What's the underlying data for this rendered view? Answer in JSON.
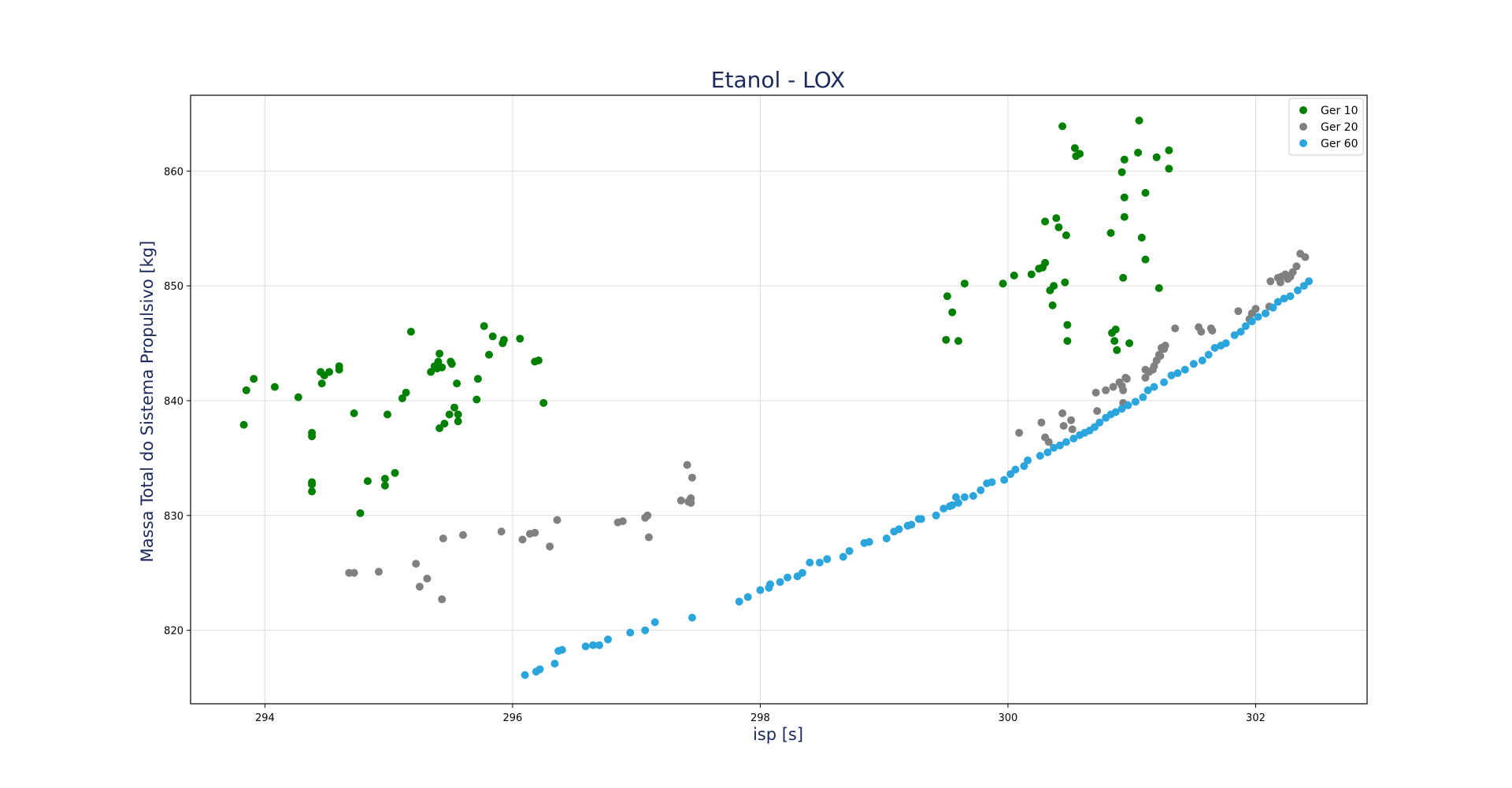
{
  "chart_data": {
    "type": "scatter",
    "title": "Etanol - LOX",
    "xlabel": "isp [s]",
    "ylabel": "Massa Total do Sistema Propulsivo [kg]",
    "xlim": [
      293.4,
      302.9
    ],
    "ylim": [
      813.6,
      866.6
    ],
    "xticks": [
      294,
      296,
      298,
      300,
      302
    ],
    "yticks": [
      820,
      830,
      840,
      850,
      860
    ],
    "grid": true,
    "legend": "top-right",
    "series": [
      {
        "name": "Ger 10",
        "color": "#008000",
        "points": [
          [
            293.83,
            837.9
          ],
          [
            293.85,
            840.9
          ],
          [
            293.91,
            841.9
          ],
          [
            294.08,
            841.2
          ],
          [
            294.27,
            840.3
          ],
          [
            294.38,
            837.2
          ],
          [
            294.38,
            836.9
          ],
          [
            294.38,
            832.9
          ],
          [
            294.38,
            832.7
          ],
          [
            294.38,
            832.1
          ],
          [
            294.45,
            842.5
          ],
          [
            294.46,
            841.5
          ],
          [
            294.48,
            842.2
          ],
          [
            294.52,
            842.5
          ],
          [
            294.6,
            843.0
          ],
          [
            294.6,
            842.7
          ],
          [
            294.72,
            838.9
          ],
          [
            294.77,
            830.2
          ],
          [
            294.83,
            833.0
          ],
          [
            294.97,
            833.2
          ],
          [
            294.97,
            832.6
          ],
          [
            294.99,
            838.8
          ],
          [
            295.05,
            833.7
          ],
          [
            295.11,
            840.2
          ],
          [
            295.14,
            840.7
          ],
          [
            295.18,
            846.0
          ],
          [
            295.34,
            842.5
          ],
          [
            295.37,
            843.0
          ],
          [
            295.39,
            842.8
          ],
          [
            295.4,
            843.4
          ],
          [
            295.41,
            844.1
          ],
          [
            295.41,
            837.6
          ],
          [
            295.43,
            842.9
          ],
          [
            295.45,
            838.0
          ],
          [
            295.49,
            838.8
          ],
          [
            295.5,
            843.4
          ],
          [
            295.51,
            843.2
          ],
          [
            295.53,
            839.4
          ],
          [
            295.55,
            841.5
          ],
          [
            295.56,
            838.8
          ],
          [
            295.56,
            838.2
          ],
          [
            295.71,
            840.1
          ],
          [
            295.72,
            841.9
          ],
          [
            295.77,
            846.5
          ],
          [
            295.81,
            844.0
          ],
          [
            295.84,
            845.6
          ],
          [
            295.92,
            845.0
          ],
          [
            295.93,
            845.3
          ],
          [
            296.06,
            845.4
          ],
          [
            296.18,
            843.4
          ],
          [
            296.21,
            843.5
          ],
          [
            296.25,
            839.8
          ],
          [
            299.5,
            845.3
          ],
          [
            299.51,
            849.1
          ],
          [
            299.55,
            847.7
          ],
          [
            299.6,
            845.2
          ],
          [
            299.65,
            850.2
          ],
          [
            299.96,
            850.2
          ],
          [
            300.05,
            850.9
          ],
          [
            300.19,
            851.0
          ],
          [
            300.25,
            851.5
          ],
          [
            300.28,
            851.6
          ],
          [
            300.3,
            852.0
          ],
          [
            300.3,
            855.6
          ],
          [
            300.34,
            849.6
          ],
          [
            300.36,
            848.3
          ],
          [
            300.37,
            850.0
          ],
          [
            300.39,
            855.9
          ],
          [
            300.41,
            855.1
          ],
          [
            300.44,
            863.9
          ],
          [
            300.46,
            850.3
          ],
          [
            300.47,
            854.4
          ],
          [
            300.48,
            846.6
          ],
          [
            300.48,
            845.2
          ],
          [
            300.54,
            862.0
          ],
          [
            300.55,
            861.3
          ],
          [
            300.58,
            861.5
          ],
          [
            300.83,
            854.6
          ],
          [
            300.84,
            845.9
          ],
          [
            300.86,
            845.2
          ],
          [
            300.87,
            846.2
          ],
          [
            300.88,
            844.4
          ],
          [
            300.92,
            859.9
          ],
          [
            300.93,
            850.7
          ],
          [
            300.94,
            856.0
          ],
          [
            300.94,
            857.7
          ],
          [
            300.94,
            861.0
          ],
          [
            300.98,
            845.0
          ],
          [
            301.05,
            861.6
          ],
          [
            301.06,
            864.4
          ],
          [
            301.08,
            854.2
          ],
          [
            301.11,
            858.1
          ],
          [
            301.11,
            852.3
          ],
          [
            301.2,
            861.2
          ],
          [
            301.22,
            849.8
          ],
          [
            301.3,
            861.8
          ],
          [
            301.3,
            860.2
          ]
        ]
      },
      {
        "name": "Ger 20",
        "color": "#808080",
        "points": [
          [
            294.68,
            825.0
          ],
          [
            294.72,
            825.0
          ],
          [
            294.92,
            825.1
          ],
          [
            295.22,
            825.8
          ],
          [
            295.25,
            823.8
          ],
          [
            295.31,
            824.5
          ],
          [
            295.43,
            822.7
          ],
          [
            295.44,
            828.0
          ],
          [
            295.6,
            828.3
          ],
          [
            295.91,
            828.6
          ],
          [
            296.08,
            827.9
          ],
          [
            296.14,
            828.4
          ],
          [
            296.18,
            828.5
          ],
          [
            296.3,
            827.3
          ],
          [
            296.36,
            829.6
          ],
          [
            296.85,
            829.4
          ],
          [
            296.89,
            829.5
          ],
          [
            297.07,
            829.8
          ],
          [
            297.09,
            830.0
          ],
          [
            297.1,
            828.1
          ],
          [
            297.36,
            831.3
          ],
          [
            297.41,
            834.4
          ],
          [
            297.42,
            831.2
          ],
          [
            297.44,
            831.5
          ],
          [
            297.44,
            831.1
          ],
          [
            297.45,
            833.3
          ],
          [
            300.09,
            837.2
          ],
          [
            300.27,
            838.1
          ],
          [
            300.3,
            836.8
          ],
          [
            300.33,
            836.4
          ],
          [
            300.44,
            838.9
          ],
          [
            300.45,
            837.8
          ],
          [
            300.51,
            838.3
          ],
          [
            300.52,
            837.5
          ],
          [
            300.71,
            840.7
          ],
          [
            300.72,
            839.1
          ],
          [
            300.79,
            840.9
          ],
          [
            300.85,
            841.2
          ],
          [
            300.9,
            841.6
          ],
          [
            300.92,
            841.3
          ],
          [
            300.93,
            840.9
          ],
          [
            300.93,
            839.8
          ],
          [
            300.95,
            842.0
          ],
          [
            300.96,
            841.9
          ],
          [
            301.11,
            842.7
          ],
          [
            301.11,
            842.0
          ],
          [
            301.14,
            842.5
          ],
          [
            301.17,
            842.7
          ],
          [
            301.18,
            843.0
          ],
          [
            301.2,
            843.5
          ],
          [
            301.22,
            844.0
          ],
          [
            301.23,
            843.9
          ],
          [
            301.24,
            844.6
          ],
          [
            301.26,
            844.5
          ],
          [
            301.27,
            844.8
          ],
          [
            301.35,
            846.3
          ],
          [
            301.54,
            846.4
          ],
          [
            301.56,
            846.0
          ],
          [
            301.64,
            846.3
          ],
          [
            301.65,
            846.1
          ],
          [
            301.86,
            847.8
          ],
          [
            301.95,
            847.1
          ],
          [
            301.97,
            847.6
          ],
          [
            302.0,
            848.0
          ],
          [
            302.08,
            847.6
          ],
          [
            302.11,
            848.2
          ],
          [
            302.12,
            850.4
          ],
          [
            302.18,
            850.7
          ],
          [
            302.2,
            850.3
          ],
          [
            302.21,
            850.8
          ],
          [
            302.24,
            851.0
          ],
          [
            302.26,
            850.6
          ],
          [
            302.28,
            850.8
          ],
          [
            302.3,
            851.2
          ],
          [
            302.33,
            851.7
          ],
          [
            302.36,
            852.8
          ],
          [
            302.4,
            852.5
          ]
        ]
      },
      {
        "name": "Ger 60",
        "color": "#2ca5dc",
        "points": [
          [
            296.1,
            816.1
          ],
          [
            296.19,
            816.4
          ],
          [
            296.22,
            816.6
          ],
          [
            296.34,
            817.1
          ],
          [
            296.37,
            818.2
          ],
          [
            296.4,
            818.3
          ],
          [
            296.59,
            818.6
          ],
          [
            296.65,
            818.7
          ],
          [
            296.7,
            818.7
          ],
          [
            296.77,
            819.2
          ],
          [
            296.95,
            819.8
          ],
          [
            297.07,
            820.0
          ],
          [
            297.15,
            820.7
          ],
          [
            297.45,
            821.1
          ],
          [
            297.83,
            822.5
          ],
          [
            297.9,
            822.9
          ],
          [
            298.0,
            823.5
          ],
          [
            298.07,
            823.7
          ],
          [
            298.08,
            824.0
          ],
          [
            298.16,
            824.2
          ],
          [
            298.22,
            824.6
          ],
          [
            298.3,
            824.7
          ],
          [
            298.34,
            825.0
          ],
          [
            298.4,
            825.9
          ],
          [
            298.48,
            825.9
          ],
          [
            298.54,
            826.2
          ],
          [
            298.67,
            826.4
          ],
          [
            298.72,
            826.9
          ],
          [
            298.84,
            827.6
          ],
          [
            298.88,
            827.7
          ],
          [
            299.02,
            828.0
          ],
          [
            299.08,
            828.6
          ],
          [
            299.12,
            828.8
          ],
          [
            299.19,
            829.1
          ],
          [
            299.22,
            829.2
          ],
          [
            299.28,
            829.7
          ],
          [
            299.3,
            829.7
          ],
          [
            299.42,
            830.0
          ],
          [
            299.48,
            830.6
          ],
          [
            299.53,
            830.8
          ],
          [
            299.55,
            830.9
          ],
          [
            299.58,
            831.6
          ],
          [
            299.6,
            831.1
          ],
          [
            299.65,
            831.6
          ],
          [
            299.72,
            831.7
          ],
          [
            299.78,
            832.2
          ],
          [
            299.83,
            832.8
          ],
          [
            299.87,
            832.9
          ],
          [
            299.97,
            833.1
          ],
          [
            300.02,
            833.6
          ],
          [
            300.06,
            834.0
          ],
          [
            300.13,
            834.3
          ],
          [
            300.16,
            834.8
          ],
          [
            300.26,
            835.2
          ],
          [
            300.32,
            835.5
          ],
          [
            300.37,
            835.9
          ],
          [
            300.42,
            836.1
          ],
          [
            300.47,
            836.4
          ],
          [
            300.53,
            836.7
          ],
          [
            300.58,
            837.0
          ],
          [
            300.62,
            837.2
          ],
          [
            300.66,
            837.4
          ],
          [
            300.7,
            837.7
          ],
          [
            300.74,
            838.1
          ],
          [
            300.79,
            838.5
          ],
          [
            300.83,
            838.8
          ],
          [
            300.87,
            839.0
          ],
          [
            300.92,
            839.3
          ],
          [
            300.97,
            839.6
          ],
          [
            301.03,
            839.9
          ],
          [
            301.09,
            840.3
          ],
          [
            301.13,
            840.9
          ],
          [
            301.18,
            841.2
          ],
          [
            301.26,
            841.6
          ],
          [
            301.32,
            842.2
          ],
          [
            301.37,
            842.4
          ],
          [
            301.43,
            842.7
          ],
          [
            301.5,
            843.2
          ],
          [
            301.57,
            843.5
          ],
          [
            301.62,
            844.0
          ],
          [
            301.67,
            844.6
          ],
          [
            301.72,
            844.8
          ],
          [
            301.76,
            845.0
          ],
          [
            301.83,
            845.7
          ],
          [
            301.88,
            846.0
          ],
          [
            301.92,
            846.5
          ],
          [
            301.97,
            846.9
          ],
          [
            302.02,
            847.3
          ],
          [
            302.08,
            847.6
          ],
          [
            302.14,
            848.1
          ],
          [
            302.18,
            848.6
          ],
          [
            302.23,
            848.9
          ],
          [
            302.28,
            849.1
          ],
          [
            302.34,
            849.6
          ],
          [
            302.39,
            850.0
          ],
          [
            302.43,
            850.4
          ]
        ]
      }
    ]
  }
}
